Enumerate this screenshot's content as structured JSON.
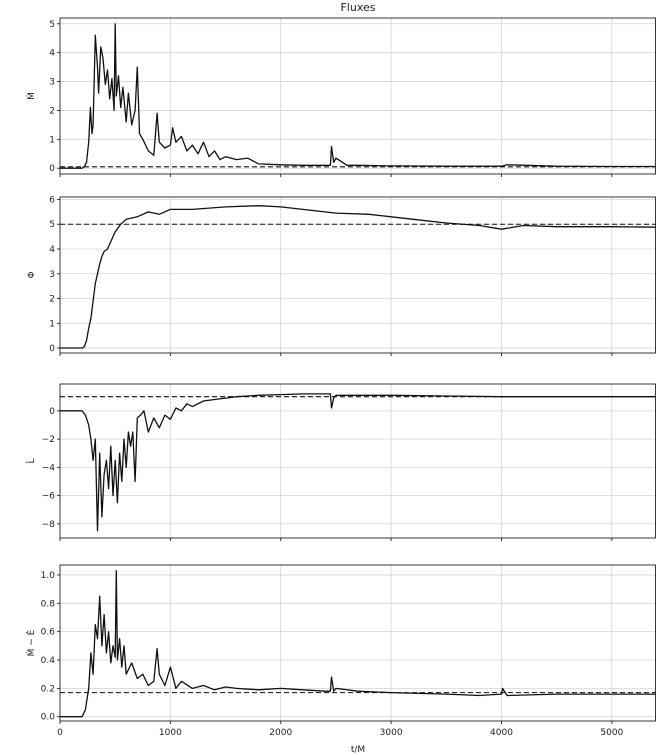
{
  "chart_data": {
    "type": "line",
    "title": "Fluxes",
    "xlabel": "t/M",
    "xlim": [
      0,
      5400
    ],
    "xticks": [
      0,
      1000,
      2000,
      3000,
      4000,
      5000
    ],
    "panels": [
      {
        "ylabel": "Ṁ",
        "ylim": [
          -0.2,
          5.2
        ],
        "yticks": [
          0,
          1,
          2,
          3,
          4,
          5
        ],
        "reference": 0.05,
        "series": {
          "x": [
            0,
            200,
            220,
            240,
            260,
            275,
            290,
            300,
            320,
            340,
            350,
            370,
            390,
            410,
            430,
            450,
            470,
            490,
            500,
            510,
            530,
            550,
            570,
            600,
            620,
            650,
            680,
            700,
            720,
            750,
            800,
            850,
            880,
            900,
            950,
            1000,
            1020,
            1050,
            1100,
            1150,
            1200,
            1250,
            1300,
            1350,
            1400,
            1450,
            1500,
            1600,
            1700,
            1800,
            2000,
            2200,
            2400,
            2450,
            2460,
            2480,
            2500,
            2600,
            2700,
            3000,
            3500,
            4000,
            4050,
            4500,
            5000,
            5400
          ],
          "y": [
            0,
            0,
            0.05,
            0.2,
            0.9,
            2.1,
            1.2,
            1.5,
            4.6,
            3.5,
            2.6,
            4.2,
            3.8,
            2.9,
            3.4,
            2.4,
            3.1,
            2.0,
            5.0,
            2.5,
            3.2,
            2.1,
            2.8,
            1.6,
            2.6,
            1.5,
            2.0,
            3.5,
            1.2,
            1.0,
            0.6,
            0.45,
            1.9,
            0.9,
            0.7,
            0.8,
            1.4,
            0.9,
            1.1,
            0.6,
            0.8,
            0.5,
            0.9,
            0.4,
            0.6,
            0.3,
            0.4,
            0.3,
            0.35,
            0.15,
            0.12,
            0.1,
            0.1,
            0.1,
            0.75,
            0.2,
            0.35,
            0.1,
            0.1,
            0.08,
            0.07,
            0.07,
            0.12,
            0.07,
            0.06,
            0.06
          ]
        }
      },
      {
        "ylabel": "Φ",
        "ylim": [
          -0.2,
          6.1
        ],
        "yticks": [
          0,
          1,
          2,
          3,
          4,
          5,
          6
        ],
        "reference": 5.0,
        "series": {
          "x": [
            0,
            200,
            220,
            240,
            260,
            280,
            300,
            320,
            340,
            360,
            380,
            400,
            430,
            460,
            500,
            550,
            600,
            700,
            800,
            900,
            1000,
            1200,
            1500,
            1800,
            2000,
            2200,
            2500,
            2800,
            3000,
            3200,
            3500,
            3800,
            4000,
            4200,
            4500,
            5000,
            5400
          ],
          "y": [
            0,
            0,
            0.05,
            0.3,
            0.8,
            1.2,
            1.9,
            2.6,
            3.0,
            3.4,
            3.7,
            3.9,
            4.0,
            4.3,
            4.7,
            5.0,
            5.2,
            5.3,
            5.5,
            5.4,
            5.6,
            5.6,
            5.7,
            5.75,
            5.7,
            5.6,
            5.45,
            5.4,
            5.3,
            5.2,
            5.05,
            4.95,
            4.8,
            4.95,
            4.9,
            4.9,
            4.88
          ]
        }
      },
      {
        "ylabel": "L̇",
        "ylim": [
          -9.0,
          1.9
        ],
        "yticks": [
          0,
          -2,
          -4,
          -6,
          -8
        ],
        "reference": 1.0,
        "series": {
          "x": [
            0,
            200,
            230,
            260,
            280,
            300,
            320,
            340,
            360,
            380,
            400,
            420,
            440,
            460,
            480,
            500,
            520,
            540,
            560,
            580,
            600,
            620,
            640,
            660,
            680,
            700,
            730,
            760,
            800,
            850,
            900,
            950,
            1000,
            1050,
            1100,
            1150,
            1200,
            1300,
            1400,
            1500,
            1600,
            1700,
            1800,
            2000,
            2200,
            2400,
            2450,
            2460,
            2480,
            2500,
            2600,
            3000,
            3500,
            4000,
            4500,
            5000,
            5400
          ],
          "y": [
            0,
            0,
            -0.3,
            -1.0,
            -2.0,
            -3.5,
            -2.0,
            -8.5,
            -3.0,
            -7.5,
            -4.5,
            -3.5,
            -5.5,
            -2.5,
            -6.0,
            -3.5,
            -6.5,
            -3.0,
            -5.0,
            -2.0,
            -4.0,
            -1.5,
            -2.5,
            -1.5,
            -5.0,
            -0.5,
            -0.3,
            0.0,
            -1.5,
            -0.5,
            -1.2,
            -0.3,
            -0.6,
            0.2,
            0.0,
            0.5,
            0.3,
            0.7,
            0.8,
            0.9,
            1.0,
            1.05,
            1.1,
            1.15,
            1.2,
            1.2,
            1.2,
            0.2,
            0.9,
            1.1,
            1.1,
            1.1,
            1.05,
            1.0,
            1.0,
            1.0,
            1.0
          ]
        }
      },
      {
        "ylabel": "Ṁ − Ė",
        "ylim": [
          -0.03,
          1.07
        ],
        "yticks": [
          0.0,
          0.2,
          0.4,
          0.6,
          0.8,
          1.0
        ],
        "reference": 0.17,
        "series": {
          "x": [
            0,
            200,
            230,
            260,
            280,
            300,
            320,
            340,
            360,
            380,
            400,
            420,
            440,
            460,
            480,
            500,
            510,
            520,
            540,
            560,
            580,
            600,
            650,
            700,
            750,
            800,
            850,
            880,
            900,
            950,
            1000,
            1050,
            1100,
            1200,
            1300,
            1400,
            1500,
            1600,
            1800,
            2000,
            2200,
            2400,
            2450,
            2460,
            2480,
            2500,
            2700,
            3000,
            3500,
            3800,
            4000,
            4010,
            4050,
            4500,
            5000,
            5400
          ],
          "y": [
            0,
            0,
            0.05,
            0.2,
            0.45,
            0.3,
            0.65,
            0.55,
            0.85,
            0.5,
            0.72,
            0.45,
            0.6,
            0.38,
            0.5,
            0.42,
            1.03,
            0.4,
            0.55,
            0.35,
            0.5,
            0.3,
            0.38,
            0.27,
            0.3,
            0.22,
            0.25,
            0.48,
            0.3,
            0.22,
            0.35,
            0.2,
            0.25,
            0.2,
            0.22,
            0.19,
            0.21,
            0.2,
            0.19,
            0.2,
            0.19,
            0.18,
            0.18,
            0.28,
            0.18,
            0.2,
            0.18,
            0.17,
            0.16,
            0.15,
            0.16,
            0.2,
            0.15,
            0.16,
            0.16,
            0.16
          ]
        }
      }
    ]
  }
}
